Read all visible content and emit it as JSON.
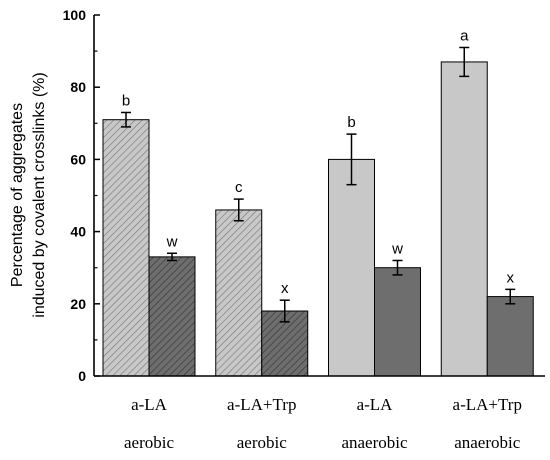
{
  "chart_data": {
    "type": "bar",
    "ylabel_lines": [
      "Percentage of aggregates",
      "induced by covalent crosslinks (%)"
    ],
    "ylim": [
      0,
      100
    ],
    "yticks": [
      "0",
      "20",
      "40",
      "60",
      "80",
      "100"
    ],
    "groups": [
      {
        "treatment": "a-LA",
        "condition": "aerobic"
      },
      {
        "treatment": "a-LA+Trp",
        "condition": "aerobic"
      },
      {
        "treatment": "a-LA",
        "condition": "anaerobic"
      },
      {
        "treatment": "a-LA+Trp",
        "condition": "anaerobic"
      }
    ],
    "series": [
      {
        "values": [
          71,
          46,
          60,
          87
        ],
        "errors": [
          2,
          3,
          7,
          4
        ],
        "significance": [
          "b",
          "c",
          "b",
          "a"
        ]
      },
      {
        "values": [
          33,
          18,
          30,
          22
        ],
        "errors": [
          1,
          3,
          2,
          2
        ],
        "significance": [
          "w",
          "x",
          "w",
          "x"
        ]
      }
    ],
    "grid": false,
    "legend": "none"
  },
  "colors": {
    "light_fill": "#c8c8c8",
    "dark_fill": "#6e6e6e",
    "axis": "#000000"
  }
}
